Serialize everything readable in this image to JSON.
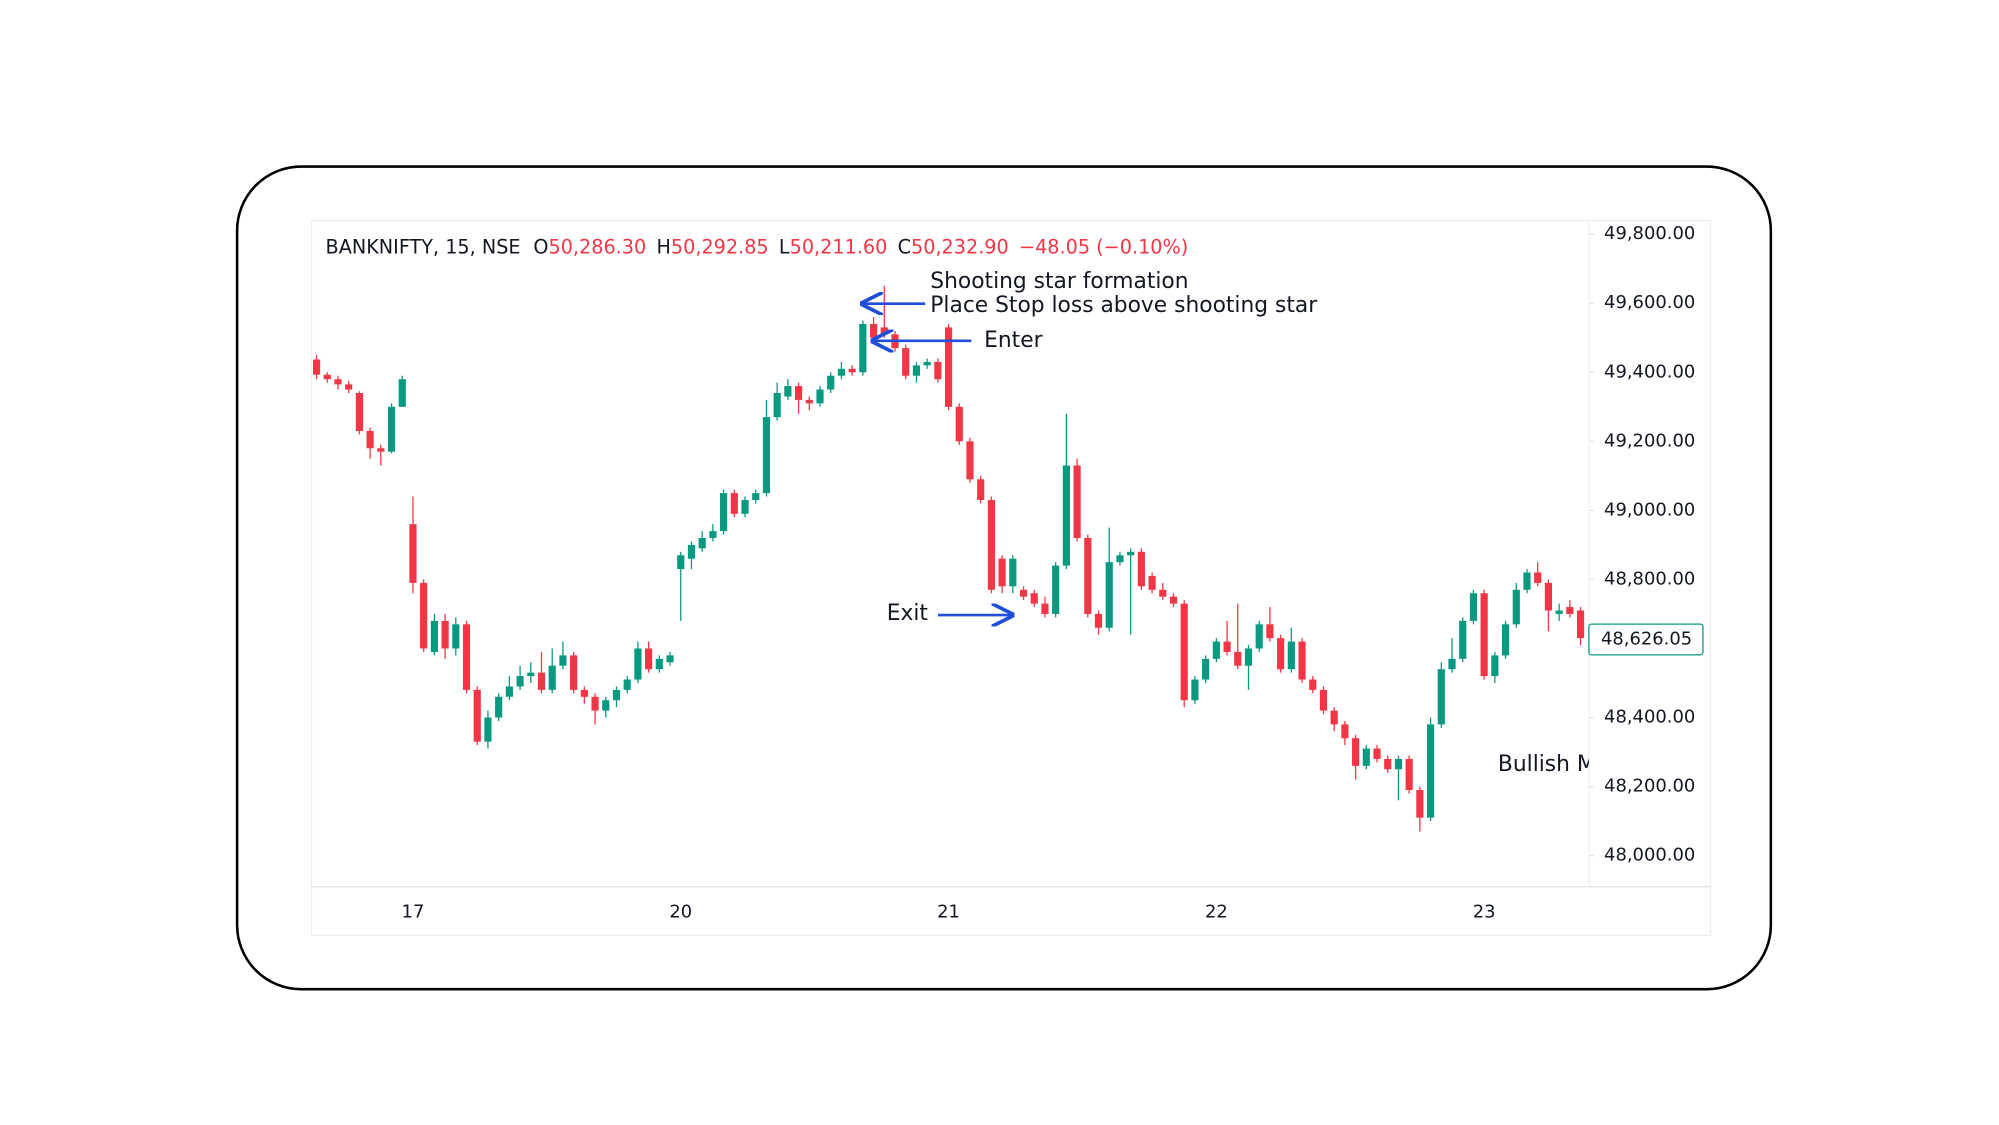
{
  "chart_data": {
    "type": "candlestick",
    "header": {
      "symbol": "BANKNIFTY, 15, NSE",
      "fields": [
        {
          "key": "O",
          "value": "50,286.30"
        },
        {
          "key": "H",
          "value": "50,292.85"
        },
        {
          "key": "L",
          "value": "50,211.60"
        },
        {
          "key": "C",
          "value": "50,232.90"
        }
      ],
      "change": "−48.05 (−0.10%)"
    },
    "annotations": [
      "Shooting star formation",
      "Place Stop loss above shooting star",
      "Enter",
      "Exit",
      "Bullish M"
    ],
    "up_color": "#089981",
    "down_color": "#f23645",
    "categories": [
      null,
      null,
      null,
      null,
      null,
      null,
      null,
      null,
      null,
      "17",
      null,
      null,
      null,
      null,
      null,
      null,
      null,
      null,
      null,
      null,
      null,
      null,
      null,
      null,
      null,
      null,
      null,
      null,
      null,
      null,
      null,
      null,
      null,
      null,
      "20",
      null,
      null,
      null,
      null,
      null,
      null,
      null,
      null,
      null,
      null,
      null,
      null,
      null,
      null,
      null,
      null,
      null,
      null,
      null,
      null,
      null,
      null,
      null,
      null,
      "21",
      null,
      null,
      null,
      null,
      null,
      null,
      null,
      null,
      null,
      null,
      null,
      null,
      null,
      null,
      null,
      null,
      null,
      null,
      null,
      null,
      null,
      null,
      null,
      null,
      "22",
      null,
      null,
      null,
      null,
      null,
      null,
      null,
      null,
      null,
      null,
      null,
      null,
      null,
      null,
      null,
      null,
      null,
      null,
      null,
      null,
      null,
      null,
      null,
      null,
      "23",
      null,
      null,
      null,
      null,
      null,
      null,
      null,
      null,
      null
    ],
    "open": [
      49437,
      49393,
      49380,
      49365,
      49340,
      49230,
      49180,
      49170,
      49300,
      48960,
      48790,
      48590,
      48680,
      48600,
      48670,
      48480,
      48330,
      48400,
      48460,
      48490,
      48520,
      48530,
      48480,
      48550,
      48580,
      48480,
      48460,
      48420,
      48450,
      48480,
      48510,
      48600,
      48540,
      48560,
      48830,
      48860,
      48890,
      48920,
      48940,
      49050,
      48990,
      49030,
      49050,
      49270,
      49330,
      49360,
      49320,
      49310,
      49350,
      49390,
      49410,
      49400,
      49540,
      49530,
      49510,
      49470,
      49390,
      49420,
      49430,
      49530,
      49300,
      49200,
      49090,
      49030,
      48860,
      48780,
      48770,
      48760,
      48730,
      48700,
      48840,
      49130,
      48920,
      48700,
      48660,
      48850,
      48870,
      48880,
      48810,
      48770,
      48750,
      48730,
      48450,
      48510,
      48570,
      48620,
      48590,
      48550,
      48600,
      48670,
      48630,
      48540,
      48620,
      48510,
      48480,
      48420,
      48380,
      48340,
      48260,
      48310,
      48280,
      48250,
      48280,
      48190,
      48110,
      48380,
      48540,
      48570,
      48680,
      48760,
      48520,
      48580,
      48670,
      48770,
      48820,
      48790,
      48700,
      48720,
      48710
    ],
    "high": [
      49450,
      49400,
      49390,
      49375,
      49345,
      49240,
      49190,
      49310,
      49390,
      49040,
      48800,
      48700,
      48700,
      48690,
      48680,
      48490,
      48420,
      48470,
      48520,
      48550,
      48560,
      48590,
      48600,
      48620,
      48590,
      48490,
      48470,
      48460,
      48490,
      48520,
      48620,
      48620,
      48580,
      48590,
      48880,
      48910,
      48940,
      48960,
      49060,
      49060,
      49040,
      49060,
      49320,
      49370,
      49380,
      49370,
      49330,
      49360,
      49400,
      49430,
      49420,
      49550,
      49560,
      49650,
      49520,
      49480,
      49430,
      49440,
      49440,
      49540,
      49310,
      49210,
      49100,
      49040,
      48870,
      48870,
      48780,
      48770,
      48750,
      48850,
      49280,
      49150,
      48930,
      48710,
      48950,
      48880,
      48890,
      48890,
      48820,
      48790,
      48760,
      48740,
      48520,
      48580,
      48630,
      48680,
      48730,
      48610,
      48680,
      48720,
      48640,
      48660,
      48630,
      48520,
      48490,
      48430,
      48390,
      48350,
      48320,
      48320,
      48290,
      48290,
      48290,
      48200,
      48400,
      48560,
      48630,
      48690,
      48770,
      48770,
      48590,
      48680,
      48790,
      48830,
      48850,
      48800,
      48730,
      48740,
      48720
    ],
    "low": [
      49380,
      49370,
      49350,
      49340,
      49220,
      49150,
      49130,
      49165,
      49300,
      48760,
      48590,
      48580,
      48570,
      48580,
      48470,
      48320,
      48310,
      48390,
      48450,
      48480,
      48500,
      48470,
      48470,
      48540,
      48470,
      48440,
      48380,
      48400,
      48430,
      48470,
      48500,
      48530,
      48530,
      48550,
      48680,
      48830,
      48880,
      48910,
      48930,
      48980,
      48980,
      49020,
      49040,
      49260,
      49320,
      49280,
      49290,
      49300,
      49340,
      49380,
      49390,
      49390,
      49490,
      49500,
      49460,
      49380,
      49370,
      49410,
      49370,
      49290,
      49190,
      49080,
      49020,
      48760,
      48760,
      48760,
      48740,
      48720,
      48690,
      48690,
      48830,
      48910,
      48690,
      48640,
      48650,
      48840,
      48640,
      48770,
      48760,
      48740,
      48720,
      48430,
      48440,
      48500,
      48560,
      48580,
      48540,
      48480,
      48590,
      48620,
      48530,
      48530,
      48500,
      48470,
      48410,
      48360,
      48320,
      48220,
      48250,
      48270,
      48240,
      48160,
      48180,
      48070,
      48100,
      48370,
      48530,
      48560,
      48670,
      48510,
      48500,
      48570,
      48660,
      48760,
      48780,
      48650,
      48680,
      48690,
      48610
    ],
    "close": [
      49393,
      49380,
      49365,
      49350,
      49230,
      49180,
      49170,
      49300,
      49380,
      48790,
      48600,
      48680,
      48600,
      48670,
      48480,
      48330,
      48400,
      48460,
      48490,
      48520,
      48530,
      48480,
      48550,
      48580,
      48480,
      48460,
      48420,
      48450,
      48480,
      48510,
      48600,
      48540,
      48570,
      48580,
      48870,
      48900,
      48920,
      48940,
      49050,
      48990,
      49030,
      49050,
      49270,
      49340,
      49360,
      49320,
      49310,
      49350,
      49390,
      49410,
      49400,
      49540,
      49500,
      49510,
      49470,
      49390,
      49420,
      49430,
      49380,
      49300,
      49200,
      49090,
      49030,
      48770,
      48780,
      48860,
      48750,
      48730,
      48700,
      48840,
      49130,
      48920,
      48700,
      48660,
      48850,
      48870,
      48880,
      48780,
      48770,
      48750,
      48730,
      48450,
      48510,
      48570,
      48620,
      48590,
      48550,
      48600,
      48670,
      48630,
      48540,
      48620,
      48510,
      48480,
      48420,
      48380,
      48340,
      48260,
      48310,
      48280,
      48250,
      48280,
      48190,
      48110,
      48380,
      48540,
      48570,
      48680,
      48760,
      48520,
      48580,
      48670,
      48770,
      48820,
      48790,
      48710,
      48710,
      48700,
      48630
    ],
    "last_price": {
      "value": 48626.05,
      "label": "48,626.05"
    },
    "last_price_color": "#089981",
    "ylim": [
      47910,
      49840
    ],
    "yticks": [
      {
        "value": 49800,
        "label": "49,800.00"
      },
      {
        "value": 49600,
        "label": "49,600.00"
      },
      {
        "value": 49400,
        "label": "49,400.00"
      },
      {
        "value": 49200,
        "label": "49,200.00"
      },
      {
        "value": 49000,
        "label": "49,000.00"
      },
      {
        "value": 48800,
        "label": "48,800.00"
      },
      {
        "value": 48600,
        "label": "48,600.00"
      },
      {
        "value": 48400,
        "label": "48,400.00"
      },
      {
        "value": 48200,
        "label": "48,200.00"
      },
      {
        "value": 48000,
        "label": "48,000.00"
      }
    ],
    "grid": false
  }
}
